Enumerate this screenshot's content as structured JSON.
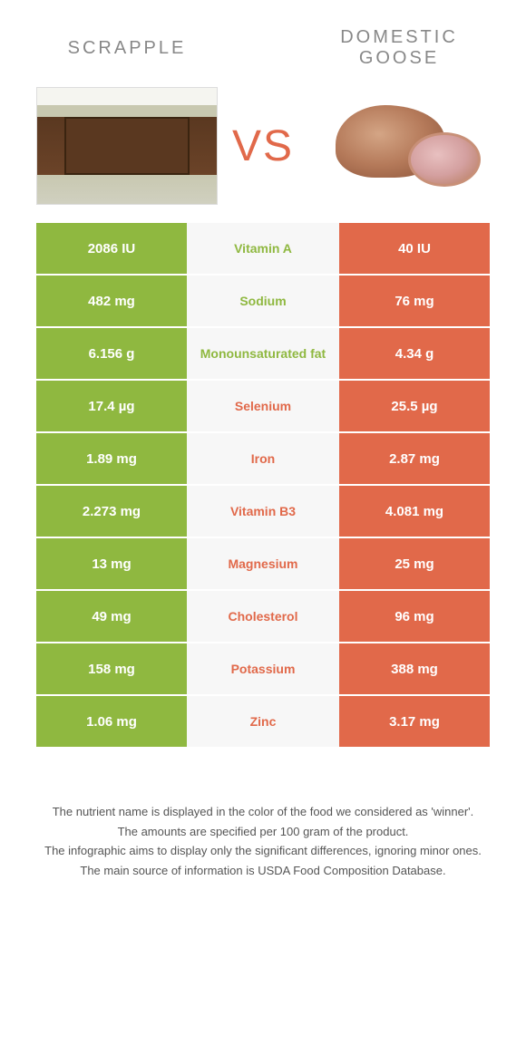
{
  "header": {
    "left_title": "SCRAPPLE",
    "right_title": "DOMESTIC GOOSE",
    "vs_label": "VS"
  },
  "colors": {
    "left": "#8fb840",
    "right": "#e1694a",
    "mid_bg": "#f7f7f7",
    "text_light": "#ffffff",
    "title_gray": "#888888"
  },
  "nutrients": [
    {
      "name": "Vitamin A",
      "left": "2086 IU",
      "right": "40 IU",
      "winner": "left"
    },
    {
      "name": "Sodium",
      "left": "482 mg",
      "right": "76 mg",
      "winner": "left"
    },
    {
      "name": "Monounsaturated fat",
      "left": "6.156 g",
      "right": "4.34 g",
      "winner": "left"
    },
    {
      "name": "Selenium",
      "left": "17.4 µg",
      "right": "25.5 µg",
      "winner": "right"
    },
    {
      "name": "Iron",
      "left": "1.89 mg",
      "right": "2.87 mg",
      "winner": "right"
    },
    {
      "name": "Vitamin B3",
      "left": "2.273 mg",
      "right": "4.081 mg",
      "winner": "right"
    },
    {
      "name": "Magnesium",
      "left": "13 mg",
      "right": "25 mg",
      "winner": "right"
    },
    {
      "name": "Cholesterol",
      "left": "49 mg",
      "right": "96 mg",
      "winner": "right"
    },
    {
      "name": "Potassium",
      "left": "158 mg",
      "right": "388 mg",
      "winner": "right"
    },
    {
      "name": "Zinc",
      "left": "1.06 mg",
      "right": "3.17 mg",
      "winner": "right"
    }
  ],
  "footnotes": [
    "The nutrient name is displayed in the color of the food we considered as 'winner'.",
    "The amounts are specified per 100 gram of the product.",
    "The infographic aims to display only the significant differences, ignoring minor ones.",
    "The main source of information is USDA Food Composition Database."
  ]
}
